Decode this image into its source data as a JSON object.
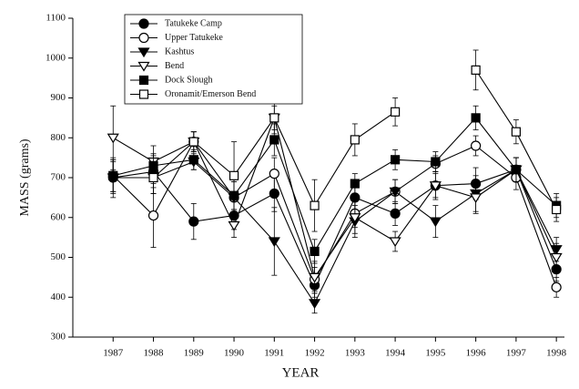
{
  "chart_data": {
    "type": "line",
    "x_label": "YEAR",
    "y_label": "MASS (grams)",
    "x": [
      1987,
      1988,
      1989,
      1990,
      1991,
      1992,
      1993,
      1994,
      1995,
      1996,
      1997,
      1998
    ],
    "xlim": [
      1986,
      1998.2
    ],
    "xticks": [
      1987,
      1988,
      1989,
      1990,
      1991,
      1992,
      1993,
      1994,
      1995,
      1996,
      1997,
      1998
    ],
    "ylim": [
      300,
      1100
    ],
    "yticks": [
      300,
      400,
      500,
      600,
      700,
      800,
      900,
      1000,
      1100
    ],
    "legend": "upper-left",
    "series": [
      {
        "name": "Tatukeke Camp",
        "color": "#000000",
        "marker": "circle",
        "filled": true,
        "values": [
          700,
          715,
          590,
          605,
          660,
          430,
          650,
          610,
          680,
          685,
          720,
          470
        ],
        "errors": [
          50,
          40,
          45,
          35,
          45,
          30,
          40,
          30,
          35,
          40,
          30,
          30
        ]
      },
      {
        "name": "Upper Tatukeke",
        "color": "#000000",
        "marker": "circle",
        "filled": false,
        "values": [
          705,
          605,
          790,
          650,
          710,
          445,
          610,
          665,
          735,
          780,
          700,
          425
        ],
        "errors": [
          40,
          80,
          25,
          45,
          40,
          30,
          35,
          30,
          20,
          25,
          30,
          25
        ]
      },
      {
        "name": "Kashtus",
        "color": "#000000",
        "marker": "triangle-down",
        "filled": true,
        "values": [
          700,
          700,
          740,
          650,
          540,
          385,
          590,
          665,
          590,
          660,
          720,
          520
        ],
        "errors": [
          40,
          40,
          20,
          40,
          85,
          25,
          40,
          30,
          40,
          45,
          30,
          30
        ]
      },
      {
        "name": "Bend",
        "color": "#000000",
        "marker": "triangle-down",
        "filled": false,
        "values": [
          800,
          740,
          790,
          580,
          850,
          450,
          600,
          540,
          680,
          650,
          720,
          500
        ],
        "errors": [
          80,
          40,
          25,
          30,
          40,
          40,
          40,
          25,
          30,
          40,
          30,
          35
        ]
      },
      {
        "name": "Dock Slough",
        "color": "#000000",
        "marker": "square",
        "filled": true,
        "values": [
          705,
          730,
          745,
          655,
          795,
          515,
          685,
          745,
          740,
          850,
          720,
          630
        ],
        "errors": [
          40,
          30,
          25,
          35,
          40,
          30,
          25,
          25,
          25,
          30,
          30,
          30
        ]
      },
      {
        "name": "Oronamit/Emerson Bend",
        "color": "#000000",
        "marker": "square",
        "filled": false,
        "values": [
          null,
          700,
          790,
          705,
          850,
          630,
          795,
          865,
          null,
          970,
          815,
          620
        ],
        "errors": [
          null,
          40,
          25,
          85,
          30,
          65,
          40,
          35,
          null,
          50,
          30,
          30
        ]
      }
    ]
  }
}
